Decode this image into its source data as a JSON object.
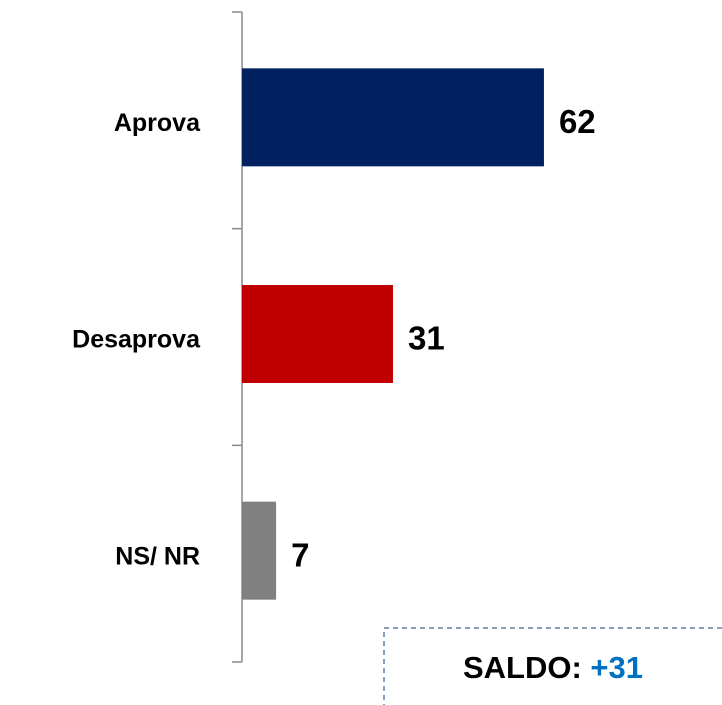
{
  "chart_data": {
    "type": "bar",
    "orientation": "horizontal",
    "categories": [
      "Aprova",
      "Desaprova",
      "NS/ NR"
    ],
    "values": [
      62,
      31,
      7
    ],
    "colors": [
      "#002060",
      "#c00000",
      "#808080"
    ],
    "annotation": {
      "label": "SALDO:",
      "value": "+31",
      "value_color": "#0070c0"
    }
  }
}
